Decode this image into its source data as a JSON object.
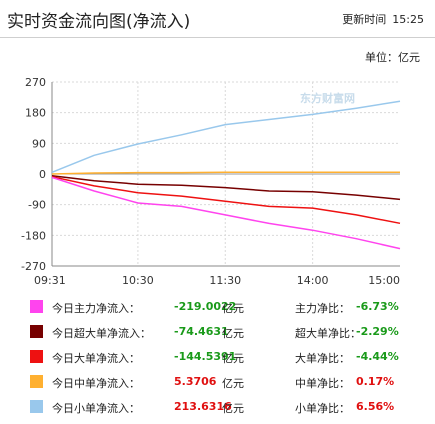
{
  "header": {
    "title": "实时资金流向图(净流入)",
    "update_label": "更新时间",
    "update_time": "15:25"
  },
  "unit_label": "单位：亿元",
  "watermark": "东方财富网",
  "chart_data": {
    "type": "line",
    "x_ticks": [
      "09:31",
      "10:30",
      "11:30",
      "14:00",
      "15:00"
    ],
    "ylim": [
      -270,
      270
    ],
    "y_ticks": [
      270,
      180,
      90,
      0,
      -90,
      -180,
      -270
    ],
    "grid": true,
    "colors": {
      "main": "#ff44ee",
      "super": "#770000",
      "large": "#ee1111",
      "medium": "#ffb030",
      "small": "#99c8ec"
    },
    "series": [
      {
        "key": "small",
        "x": [
          "09:31",
          "10:00",
          "10:30",
          "11:00",
          "11:30",
          "13:30",
          "14:00",
          "14:30",
          "15:00"
        ],
        "values": [
          5,
          55,
          88,
          115,
          145,
          160,
          175,
          193,
          213.6316
        ]
      },
      {
        "key": "medium",
        "x": [
          "09:31",
          "10:00",
          "10:30",
          "11:00",
          "11:30",
          "13:30",
          "14:00",
          "14:30",
          "15:00"
        ],
        "values": [
          0,
          3,
          4,
          4,
          5,
          5,
          5,
          5,
          5.3706
        ]
      },
      {
        "key": "super",
        "x": [
          "09:31",
          "10:00",
          "10:30",
          "11:00",
          "11:30",
          "13:30",
          "14:00",
          "14:30",
          "15:00"
        ],
        "values": [
          -5,
          -20,
          -30,
          -33,
          -40,
          -50,
          -52,
          -62,
          -74.4631
        ]
      },
      {
        "key": "large",
        "x": [
          "09:31",
          "10:00",
          "10:30",
          "11:00",
          "11:30",
          "13:30",
          "14:00",
          "14:30",
          "15:00"
        ],
        "values": [
          -8,
          -35,
          -55,
          -65,
          -80,
          -95,
          -100,
          -120,
          -144.5391
        ]
      },
      {
        "key": "main",
        "x": [
          "09:31",
          "10:00",
          "10:30",
          "11:00",
          "11:30",
          "13:30",
          "14:00",
          "14:30",
          "15:00"
        ],
        "values": [
          -10,
          -50,
          -85,
          -95,
          -120,
          -145,
          -165,
          -190,
          -219.0022
        ]
      }
    ]
  },
  "legend": [
    {
      "key": "main",
      "color": "#ff44ee",
      "label": "今日主力净流入：",
      "value": "-219.0022",
      "unit": "亿元",
      "ratio_label": "主力净比：",
      "ratio": "-6.73%",
      "sign": "neg"
    },
    {
      "key": "super",
      "color": "#770000",
      "label": "今日超大单净流入：",
      "value": "-74.4631",
      "unit": "亿元",
      "ratio_label": "超大单净比：",
      "ratio": "-2.29%",
      "sign": "neg"
    },
    {
      "key": "large",
      "color": "#ee1111",
      "label": "今日大单净流入：",
      "value": "-144.5391",
      "unit": "亿元",
      "ratio_label": "大单净比：",
      "ratio": "-4.44%",
      "sign": "neg"
    },
    {
      "key": "medium",
      "color": "#ffb030",
      "label": "今日中单净流入：",
      "value": "5.3706",
      "unit": "亿元",
      "ratio_label": "中单净比：",
      "ratio": "0.17%",
      "sign": "pos"
    },
    {
      "key": "small",
      "color": "#99c8ec",
      "label": "今日小单净流入：",
      "value": "213.6316",
      "unit": "亿元",
      "ratio_label": "小单净比：",
      "ratio": "6.56%",
      "sign": "pos"
    }
  ]
}
